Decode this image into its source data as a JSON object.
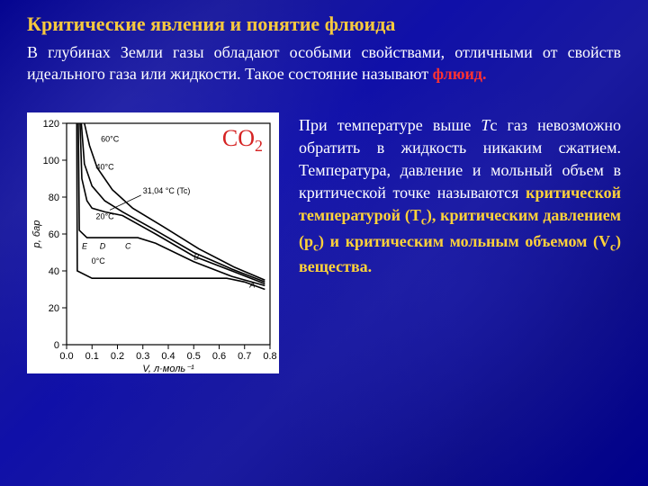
{
  "title": {
    "text": "Критические явления и понятие флюида",
    "color": "#f7c93e"
  },
  "intro": {
    "text_before": "В глубинах Земли газы обладают особыми свойствами, отличными от свойств идеального газа или жидкости. Такое состояние называют ",
    "fluid_word": "флюид.",
    "fluid_color": "#ff3232"
  },
  "chart": {
    "type": "line",
    "substance_label": "CO2",
    "substance_color": "#d52323",
    "xlabel": "V, л·моль⁻¹",
    "ylabel": "p, бар",
    "xlim": [
      0.0,
      0.8
    ],
    "ylim": [
      0,
      120
    ],
    "xticks": [
      0.0,
      0.1,
      0.2,
      0.3,
      0.4,
      0.5,
      0.6,
      0.7,
      0.8
    ],
    "yticks": [
      0,
      20,
      40,
      60,
      80,
      100,
      120
    ],
    "background_color": "#ffffff",
    "axis_color": "#000000",
    "line_color": "#000000",
    "line_width": 1.6,
    "isotherms": [
      {
        "label": "0°C",
        "points": [
          [
            0.04,
            120
          ],
          [
            0.042,
            40
          ],
          [
            0.1,
            36
          ],
          [
            0.55,
            36
          ],
          [
            0.63,
            36
          ],
          [
            0.7,
            34
          ],
          [
            0.78,
            30
          ]
        ]
      },
      {
        "label": "20°C",
        "points": [
          [
            0.046,
            120
          ],
          [
            0.05,
            62
          ],
          [
            0.08,
            58
          ],
          [
            0.28,
            58
          ],
          [
            0.35,
            55
          ],
          [
            0.5,
            45
          ],
          [
            0.65,
            37
          ],
          [
            0.78,
            32
          ]
        ]
      },
      {
        "label": "31,04 °C (Tc)",
        "points": [
          [
            0.053,
            120
          ],
          [
            0.06,
            90
          ],
          [
            0.08,
            78
          ],
          [
            0.1,
            74
          ],
          [
            0.15,
            72
          ],
          [
            0.22,
            70
          ],
          [
            0.35,
            60
          ],
          [
            0.5,
            48
          ],
          [
            0.65,
            40
          ],
          [
            0.78,
            33
          ]
        ]
      },
      {
        "label": "40°C",
        "points": [
          [
            0.058,
            120
          ],
          [
            0.07,
            98
          ],
          [
            0.1,
            86
          ],
          [
            0.15,
            78
          ],
          [
            0.22,
            72
          ],
          [
            0.35,
            62
          ],
          [
            0.5,
            50
          ],
          [
            0.65,
            41
          ],
          [
            0.78,
            34
          ]
        ]
      },
      {
        "label": "60°C",
        "points": [
          [
            0.07,
            120
          ],
          [
            0.09,
            108
          ],
          [
            0.12,
            96
          ],
          [
            0.18,
            84
          ],
          [
            0.26,
            74
          ],
          [
            0.38,
            64
          ],
          [
            0.52,
            52
          ],
          [
            0.66,
            42
          ],
          [
            0.78,
            35
          ]
        ]
      }
    ],
    "temp_label_positions": {
      "60°C": [
        0.135,
        110
      ],
      "40°C": [
        0.115,
        95
      ],
      "31,04 °C (Tc)": [
        0.3,
        82
      ],
      "20°C": [
        0.115,
        68
      ],
      "0°C": [
        0.098,
        44
      ]
    },
    "curve_labels": [
      {
        "text": "A",
        "pos": [
          0.72,
          31
        ]
      },
      {
        "text": "B",
        "pos": [
          0.5,
          46
        ]
      },
      {
        "text": "C",
        "pos": [
          0.23,
          52
        ]
      },
      {
        "text": "D",
        "pos": [
          0.13,
          52
        ]
      },
      {
        "text": "E",
        "pos": [
          0.06,
          52
        ]
      }
    ]
  },
  "right_text": {
    "part1": "При температуре выше ",
    "tc_inline": "Т",
    "part1b": "с газ невозможно обратить в жидкость никаким сжатием. Температура, давление и мольный объем в критической точке называются ",
    "yellow_tc": "критической температурой (T",
    "yellow_tc2": ")",
    "comma1": ", ",
    "yellow_pc": "критическим давлением (p",
    "yellow_pc2": ")",
    "and": " и ",
    "yellow_vc": "критическим мольным объемом (V",
    "yellow_vc2": ") вещества.",
    "sub_c": "c",
    "yellow_color": "#ffd23a"
  }
}
